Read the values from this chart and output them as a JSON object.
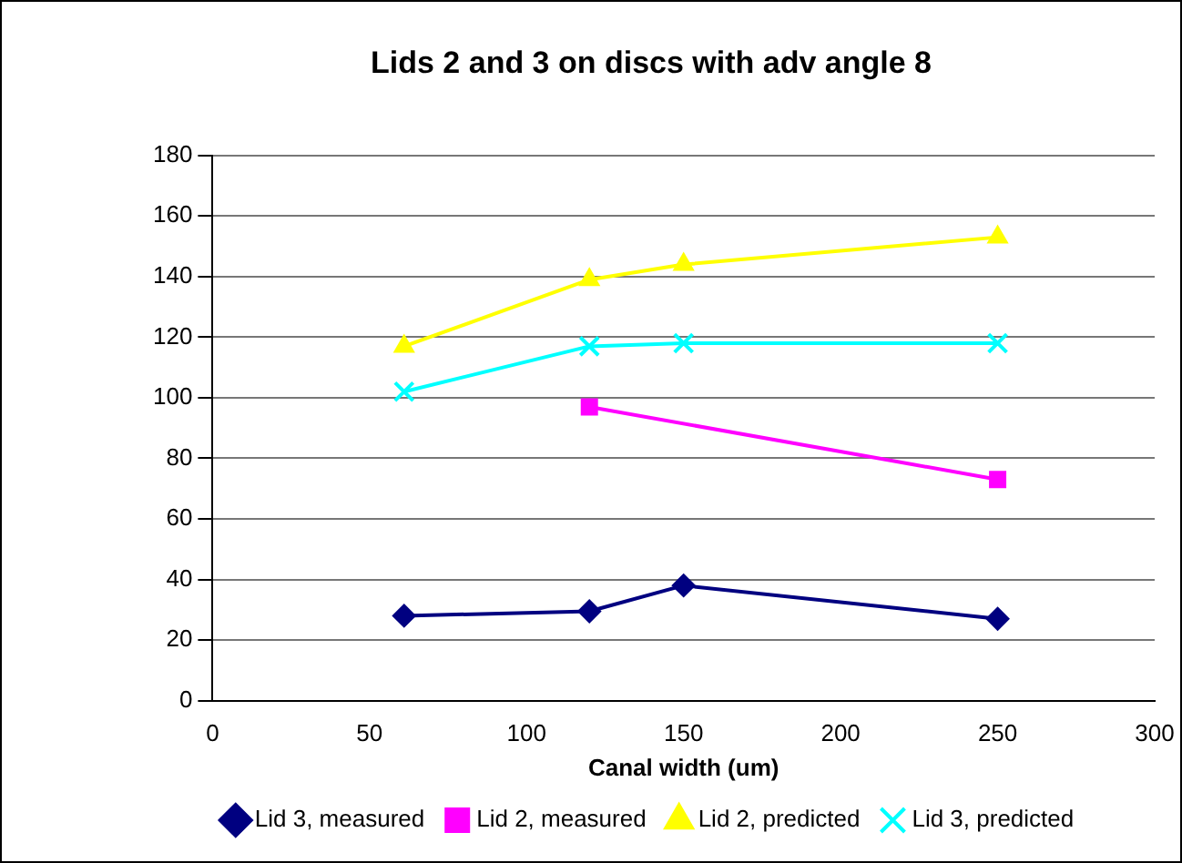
{
  "chart_data": {
    "type": "line",
    "title": "Lids 2 and 3 on discs with adv angle 8",
    "xlabel": "Canal width (um)",
    "xlim": [
      0,
      300
    ],
    "xticks": [
      0,
      50,
      100,
      150,
      200,
      250,
      300
    ],
    "ylim": [
      0,
      180
    ],
    "yticks": [
      0,
      20,
      40,
      60,
      80,
      100,
      120,
      140,
      160,
      180
    ],
    "grid": "y",
    "legend": "bottom",
    "series": [
      {
        "name": "Lid 3, measured",
        "color": "#000080",
        "marker": "diamond",
        "x": [
          61,
          120,
          150,
          250
        ],
        "values": [
          28,
          29.5,
          38,
          27
        ]
      },
      {
        "name": "Lid 2, measured",
        "color": "#ff00ff",
        "marker": "square",
        "x": [
          120,
          250
        ],
        "values": [
          97,
          73
        ]
      },
      {
        "name": "Lid 2, predicted",
        "color": "#ffff00",
        "marker": "triangle",
        "x": [
          61,
          120,
          150,
          250
        ],
        "values": [
          117,
          139,
          144,
          153
        ]
      },
      {
        "name": "Lid 3, predicted",
        "color": "#00ffff",
        "marker": "cross",
        "x": [
          61,
          120,
          150,
          250
        ],
        "values": [
          102,
          117,
          118,
          118
        ]
      }
    ]
  }
}
